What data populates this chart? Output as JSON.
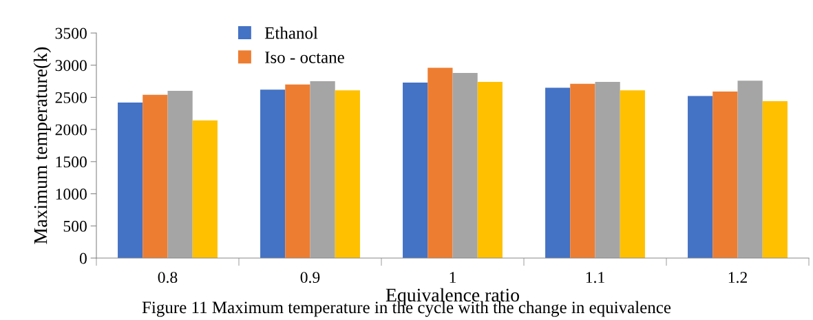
{
  "chart_data": {
    "type": "bar",
    "categories": [
      "0.8",
      "0.9",
      "1",
      "1.1",
      "1.2"
    ],
    "series": [
      {
        "name": "Ethanol",
        "color": "#4472c4",
        "values": [
          2420,
          2620,
          2730,
          2650,
          2520
        ]
      },
      {
        "name": "Iso - octane",
        "color": "#ed7d31",
        "values": [
          2540,
          2700,
          2960,
          2710,
          2590
        ]
      },
      {
        "color": "#a5a5a5",
        "values": [
          2600,
          2750,
          2880,
          2740,
          2760
        ]
      },
      {
        "color": "#ffc000",
        "values": [
          2140,
          2610,
          2740,
          2610,
          2440
        ]
      }
    ],
    "xlabel": "Equivalence ratio",
    "ylabel": "Maximum temperature(k)",
    "ylim": [
      0,
      3500
    ],
    "yticks": [
      0,
      500,
      1000,
      1500,
      2000,
      2500,
      3000,
      3500
    ],
    "grid": false,
    "legend": "top left",
    "annotations": [
      "Figure 11 Maximum temperature in the cycle with the change in equivalence"
    ]
  }
}
